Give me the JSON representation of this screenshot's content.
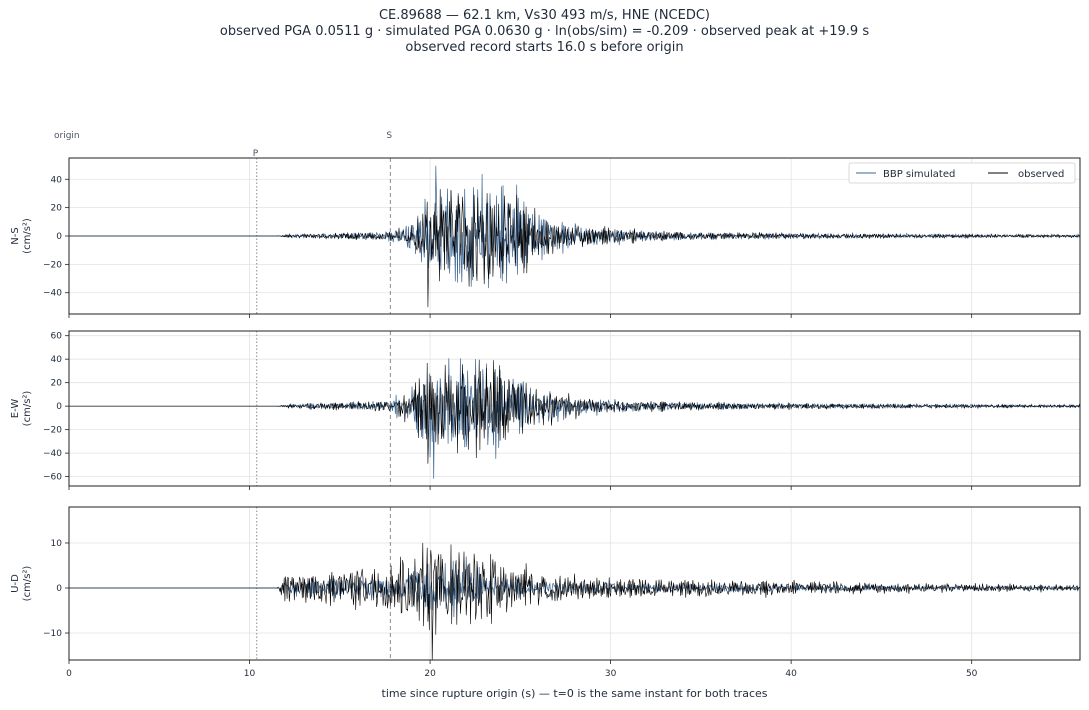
{
  "header": {
    "line1": "CE.89688  —  62.1 km, Vs30 493 m/s, HNE (NCEDC)",
    "line2": "observed PGA 0.0511 g   ·   simulated PGA 0.0630 g   ·   ln(obs/sim) = -0.209   ·   observed peak at +19.9 s",
    "line3": "observed record starts 16.0 s before origin"
  },
  "markers": {
    "origin": {
      "label": "origin",
      "t": 0
    },
    "p": {
      "label": "P",
      "t": 10.4
    },
    "s": {
      "label": "S",
      "t": 17.8
    }
  },
  "colors": {
    "simulated": "#3d6591",
    "observed": "#000000",
    "grid": "#e3e3e3",
    "marker": "#8a8a8a"
  },
  "chart_data": {
    "type": "line",
    "xlabel": "time since rupture origin (s)   —   t=0 is the same instant for both traces",
    "xlim": [
      0,
      56
    ],
    "xticks": [
      0,
      10,
      20,
      30,
      40,
      50
    ],
    "grid": true,
    "legend": {
      "placement": "top-right",
      "entries": [
        "BBP simulated",
        "observed"
      ]
    },
    "panels": [
      {
        "ylabel": "N-S",
        "yunit": "(cm/s²)",
        "ylim": [
          -55,
          55
        ],
        "yticks": [
          -40,
          -20,
          0,
          20,
          40
        ],
        "envelope": [
          [
            0,
            0
          ],
          [
            11.5,
            0
          ],
          [
            12,
            1
          ],
          [
            14,
            2
          ],
          [
            16,
            3
          ],
          [
            17.8,
            4
          ],
          [
            19,
            12
          ],
          [
            19.8,
            28
          ],
          [
            20.5,
            38
          ],
          [
            21.5,
            42
          ],
          [
            22.5,
            45
          ],
          [
            23.5,
            42
          ],
          [
            24.5,
            38
          ],
          [
            25.5,
            22
          ],
          [
            27,
            12
          ],
          [
            29,
            8
          ],
          [
            31,
            5
          ],
          [
            34,
            3
          ],
          [
            38,
            2.5
          ],
          [
            42,
            2
          ],
          [
            47,
            1.5
          ],
          [
            52,
            1.2
          ],
          [
            56,
            1
          ]
        ],
        "series": [
          {
            "name": "BBP simulated",
            "peak": 49.5,
            "peak_t": 20.3
          },
          {
            "name": "observed",
            "peak": 50.1,
            "peak_t": 19.9
          }
        ]
      },
      {
        "ylabel": "E-W",
        "yunit": "(cm/s²)",
        "ylim": [
          -68,
          64
        ],
        "yticks": [
          -60,
          -40,
          -20,
          0,
          20,
          40,
          60
        ],
        "envelope": [
          [
            0,
            0
          ],
          [
            11.5,
            0
          ],
          [
            12,
            1.5
          ],
          [
            14,
            3
          ],
          [
            16,
            4
          ],
          [
            17.8,
            5
          ],
          [
            19,
            18
          ],
          [
            20,
            38
          ],
          [
            21,
            40
          ],
          [
            22,
            42
          ],
          [
            23,
            48
          ],
          [
            23.5,
            45
          ],
          [
            24.5,
            32
          ],
          [
            26,
            18
          ],
          [
            28,
            10
          ],
          [
            30,
            6
          ],
          [
            33,
            4
          ],
          [
            37,
            3
          ],
          [
            42,
            2.5
          ],
          [
            47,
            2
          ],
          [
            52,
            1.5
          ],
          [
            56,
            1.2
          ]
        ],
        "series": [
          {
            "name": "BBP simulated",
            "peak": 61.8,
            "peak_t": 20.2
          },
          {
            "name": "observed",
            "peak": 49.0,
            "peak_t": 19.9
          }
        ]
      },
      {
        "ylabel": "U-D",
        "yunit": "(cm/s²)",
        "ylim": [
          -16,
          18
        ],
        "yticks": [
          -10,
          0,
          10
        ],
        "envelope": [
          [
            0,
            0
          ],
          [
            11.5,
            0
          ],
          [
            11.8,
            3
          ],
          [
            13,
            4
          ],
          [
            15,
            5
          ],
          [
            17.8,
            5.5
          ],
          [
            19,
            9
          ],
          [
            20,
            13
          ],
          [
            21,
            11
          ],
          [
            22,
            10
          ],
          [
            23,
            9
          ],
          [
            24.5,
            6
          ],
          [
            26,
            4
          ],
          [
            28,
            3
          ],
          [
            31,
            2.5
          ],
          [
            35,
            2.2
          ],
          [
            40,
            1.8
          ],
          [
            45,
            1.3
          ],
          [
            50,
            1
          ],
          [
            56,
            0.8
          ]
        ],
        "series": [
          {
            "name": "BBP simulated",
            "peak": 7.0,
            "peak_t": 22.0
          },
          {
            "name": "observed",
            "peak": 16.5,
            "peak_t": 20.1
          }
        ]
      }
    ]
  }
}
